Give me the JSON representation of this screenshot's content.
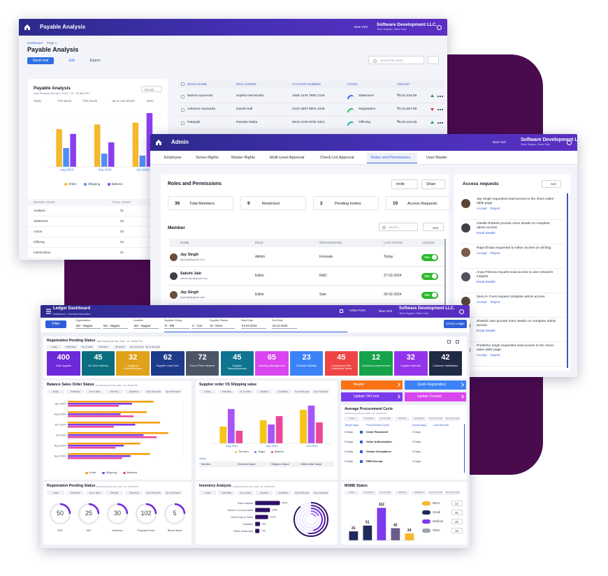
{
  "payable": {
    "header": {
      "title": "Payable Analysis",
      "location": "New York",
      "company": "Software Development LLC.",
      "address": "Time Square, New York"
    },
    "breadcrumb": [
      "Dashboard",
      "Page 1"
    ],
    "page_title": "Payable Analysis",
    "buttons": [
      "Send mail",
      "Edit",
      "Export"
    ],
    "search_placeholder": "Search by name",
    "card": {
      "title": "Payable Analysis",
      "subtitle": "Last Process (01 Nov, 2023 - 10 : 25 AM IST)",
      "dropdown": "Amount",
      "tabs": [
        "Today",
        "This Week",
        "This Month",
        "Up to Last Month",
        "More"
      ],
      "chart": {
        "type": "bar",
        "categories": [
          "Aug 2023",
          "Sep 2023",
          "Oct 2023"
        ],
        "series": [
          {
            "name": "Order",
            "color": "#f5b82e",
            "values": [
              40,
              45,
              47
            ]
          },
          {
            "name": "Shipping",
            "color": "#4f8ef7",
            "values": [
              20,
              14,
              12
            ]
          },
          {
            "name": "Balance",
            "color": "#8b3df0",
            "values": [
              35,
              26,
              57
            ]
          }
        ],
        "ylim": [
          0,
          60
        ]
      },
      "table": {
        "headers": [
          "REPORT STAGE",
          "TOTAL COUNT"
        ],
        "rows": [
          [
            "Analysis",
            "01"
          ],
          [
            "Statement",
            "02"
          ],
          [
            "Action",
            "02"
          ],
          [
            "Offering",
            "02"
          ],
          [
            "Interlocation",
            "01"
          ]
        ]
      }
    },
    "deals": {
      "headers": [
        "DEALS NAME",
        "DEAL OWNER",
        "ACCOUNT NUMBER",
        "STAGE",
        "AMOUNT"
      ],
      "rows": [
        [
          "Marma Ayurveda",
          "Sophia Hernandez",
          "3456 1234 7890 1234",
          "Statement",
          "₹9,01,234.56"
        ],
        [
          "Advance Ayurveda",
          "Daniel Hall",
          "0123 4567 8901 2345",
          "Negotiation",
          "₹2,34,567.89"
        ],
        [
          "Patanjali",
          "Ramdev Baba",
          "6543 2109 8765 4321",
          "Offering",
          "₹8,90,123.45"
        ]
      ],
      "trend": [
        "up",
        "down",
        "up"
      ]
    }
  },
  "admin": {
    "header": {
      "title": "Admin",
      "location": "New York",
      "company": "Software Development LLC.",
      "address": "Time Square, New York"
    },
    "tabs": [
      "Employee",
      "Series Rights",
      "Master Rights",
      "Multi-Level Approval",
      "Check List Approval",
      "Roles and Permissions",
      "User Master"
    ],
    "active_tab": 5,
    "section_title": "Roles and Permissions",
    "buttons": [
      "Invite",
      "Share"
    ],
    "stats": [
      {
        "value": 36,
        "label": "Total Members"
      },
      {
        "value": 9,
        "label": "Restricted"
      },
      {
        "value": 2,
        "label": "Pending Invites"
      },
      {
        "value": 10,
        "label": "Access Requests"
      }
    ],
    "member_title": "Member",
    "search_placeholder": "Search...",
    "sort": "Sort",
    "table": {
      "headers": [
        "NAME",
        "ROLE",
        "ORGANIZATION",
        "LAST ACTIVE",
        "ACCESS"
      ],
      "rows": [
        [
          "Jay Singh",
          "jaysingh@gmail.com",
          "Admin",
          "Innovate",
          "Today",
          "Yes"
        ],
        [
          "Sakshi Jain",
          "sakshi.jain@gmail.com",
          "Editor",
          "R&D",
          "27-02-2024",
          "Yes"
        ],
        [
          "Jay Singh",
          "jaysingh@gmail.com",
          "Editor",
          "Sale",
          "26-02-2024",
          "Yes"
        ]
      ]
    },
    "requests": {
      "title": "Access requests",
      "sort": "Sort",
      "items": [
        {
          "text": "Jay Singh requested read access to the churn sales table page",
          "actions": [
            "Accept",
            "Reject"
          ]
        },
        {
          "text": "Giselle Roberts provide more details on complete admin access",
          "actions": [
            "Read details"
          ]
        },
        {
          "text": "Rajat bhatia requested to editor access on all blog",
          "actions": [
            "Accept",
            "Reject"
          ]
        },
        {
          "text": "Anya Petrova request read access to user research insights",
          "actions": [
            "Read details"
          ]
        },
        {
          "text": "Zara Al- Farsi request complete admin access",
          "actions": [
            "Accept",
            "Reject"
          ]
        },
        {
          "text": "Shakshi Jain provide more details on complete admin access",
          "actions": [
            "Read details"
          ]
        },
        {
          "text": "Pratiksha Singh requested read access to the churn sales table page",
          "actions": [
            "Accept",
            "Reject"
          ]
        }
      ]
    }
  },
  "ledger": {
    "header": {
      "title": "Ledger Dashboard",
      "breadcrumb": "Dashboard > General Information",
      "active_form": "Active Form",
      "location": "New York",
      "company": "Software Development LLC.",
      "address": "Time Square, New York"
    },
    "filter_button": "Filter",
    "filters": [
      {
        "label": "Organization",
        "values": [
          "MA - Nagpur",
          "MA - Nagpur"
        ]
      },
      {
        "label": "Location",
        "values": [
          "MA - Nagpur"
        ]
      },
      {
        "label": "Supplier Group",
        "values": [
          "R - RM",
          "C - Con"
        ]
      },
      {
        "label": "Supplier Status",
        "values": [
          "M - Micro"
        ]
      },
      {
        "label": "Start Date",
        "values": [
          "01-04-2024"
        ]
      },
      {
        "label": "End Date",
        "values": [
          "02-12-2024"
        ]
      }
    ],
    "check_button": "Check Ledger",
    "tabs": [
      "Today",
      "Yesterday",
      "As on date",
      "Monthly",
      "Quarterly",
      "Up to this year",
      "Up to last year"
    ],
    "last_process": "Last Process (31 Nov, 2023 - 10 : 25 AM IST)",
    "registration": {
      "title": "Registration Pending Status",
      "kpis": [
        {
          "value": 400,
          "label": "Total Supplier",
          "color": "#6d28d9"
        },
        {
          "value": 45,
          "label": "On-Time Delivery",
          "color": "#0b6e7e"
        },
        {
          "value": 32,
          "label": "Quality of Goods/Services",
          "color": "#e0a11b"
        },
        {
          "value": 62,
          "label": "Supplier Lead Time",
          "color": "#1e3a8a"
        },
        {
          "value": 72,
          "label": "Cost & Price Variance",
          "color": "#4b5563"
        },
        {
          "value": 45,
          "label": "Supplier Responsiveness",
          "color": "#0e7490"
        },
        {
          "value": 65,
          "label": "Inventory Management",
          "color": "#d946ef"
        },
        {
          "value": 23,
          "label": "Financial Stability",
          "color": "#3b82f6"
        },
        {
          "value": 45,
          "label": "Compliance With Contractual Terms",
          "color": "#ef4444"
        },
        {
          "value": 12,
          "label": "Continuous Improvement",
          "color": "#16a34a"
        },
        {
          "value": 32,
          "label": "Supplier Diversity",
          "color": "#9333ea"
        },
        {
          "value": 42,
          "label": "Customer Satisfaction",
          "color": "#1f2a44"
        }
      ]
    },
    "balance_sales": {
      "title": "Balance Sales Order Status",
      "chart": {
        "type": "bar",
        "orientation": "horizontal",
        "categories": [
          "Apr 2024",
          "May 2024",
          "Jun 2024",
          "Jul 2024",
          "Aug 2024",
          "Sep 2024"
        ],
        "series": [
          {
            "name": "Order",
            "color": "#f59e0b",
            "values": [
              5.2,
              4.8,
              5.6,
              6.1,
              4.4,
              5.0
            ]
          },
          {
            "name": "Shipping",
            "color": "#7c3aed",
            "values": [
              3.9,
              3.2,
              4.1,
              4.6,
              3.4,
              3.8
            ]
          },
          {
            "name": "Balance",
            "color": "#ec4899",
            "values": [
              3.1,
              4.0,
              2.8,
              5.4,
              2.9,
              3.3
            ]
          }
        ],
        "xlim": [
          0,
          7
        ]
      }
    },
    "supplier_order": {
      "title": "Supplier order VS Shipping value",
      "chart": {
        "type": "bar",
        "categories": [
          "Aug 2023",
          "Sep 2023",
          "Oct 2023"
        ],
        "series": [
          {
            "name": "Turnover",
            "color": "#f5c518",
            "values": [
              40,
              55,
              80
            ]
          },
          {
            "name": "Target",
            "color": "#a855f7",
            "values": [
              82,
              45,
              90
            ]
          },
          {
            "name": "Balance",
            "color": "#ec4899",
            "values": [
              30,
              65,
              50
            ]
          }
        ],
        "ylim": [
          0,
          100
        ]
      },
      "table_label": "Value",
      "table_headers": [
        "Months",
        "Ordered Value",
        "Shipped Value",
        "Differential Value"
      ]
    },
    "actions": [
      {
        "label": "Master",
        "color": "#f97316"
      },
      {
        "label": "Quick Registration",
        "color": "#3b82f6"
      },
      {
        "label": "Update TAX Info",
        "color": "#7c3aed"
      },
      {
        "label": "Update Contact",
        "color": "#d946ef"
      }
    ],
    "procurement": {
      "title": "Average Procurement Cycle",
      "headers": [
        "Target days",
        "Procurement Cycle",
        "Actual days",
        "Last Remark"
      ],
      "rows": [
        [
          "0 Days",
          "Order Placement",
          "0 Days"
        ],
        [
          "0 Days",
          "Order Authorisation",
          "0 Days"
        ],
        [
          "0 Days",
          "Vendor Acceptance",
          "0 Days"
        ],
        [
          "0 Days",
          "PRN Receipt",
          "0 Days"
        ]
      ]
    },
    "pending": {
      "title": "Registration Pending Status",
      "items": [
        {
          "value": 50,
          "label": "GST"
        },
        {
          "value": 25,
          "label": "VAT"
        },
        {
          "value": 30,
          "label": "Address"
        },
        {
          "value": 102,
          "label": "Payment term"
        },
        {
          "value": 5,
          "label": "Block listed"
        }
      ]
    },
    "inventory": {
      "title": "Inventory Analysis",
      "chart": {
        "type": "bar",
        "orientation": "horizontal",
        "categories": [
          "Raw material",
          "Stores & Consumable",
          "Direct Buy & Sales",
          "Saleable",
          "Office Stationary"
        ],
        "values": [
          40,
          24,
          21,
          8,
          7
        ],
        "value_labels": [
          "40%",
          "24%",
          "21%",
          "8%",
          "7%"
        ],
        "color": "#2e1065",
        "xlim": [
          0,
          45
        ]
      }
    },
    "msme": {
      "title": "MSME Status",
      "chart": {
        "type": "bar",
        "categories": [
          null,
          null,
          null,
          null,
          null
        ],
        "values": [
          31,
          51,
          112,
          42,
          24
        ],
        "data_labels": true,
        "colors": [
          "#1e2a5a",
          "#1e2a5a",
          "#7c3aed",
          "#6b5b8a",
          "#f5b82e"
        ],
        "ylim": [
          0,
          125
        ]
      },
      "legend": [
        {
          "name": "Micro",
          "value": 14,
          "color": "#f5b82e"
        },
        {
          "name": "Small",
          "value": 40,
          "color": "#1e2a5a"
        },
        {
          "name": "Medium",
          "value": 25,
          "color": "#7c3aed"
        },
        {
          "name": "Other",
          "value": 15,
          "color": "#9ca3af"
        }
      ]
    }
  }
}
